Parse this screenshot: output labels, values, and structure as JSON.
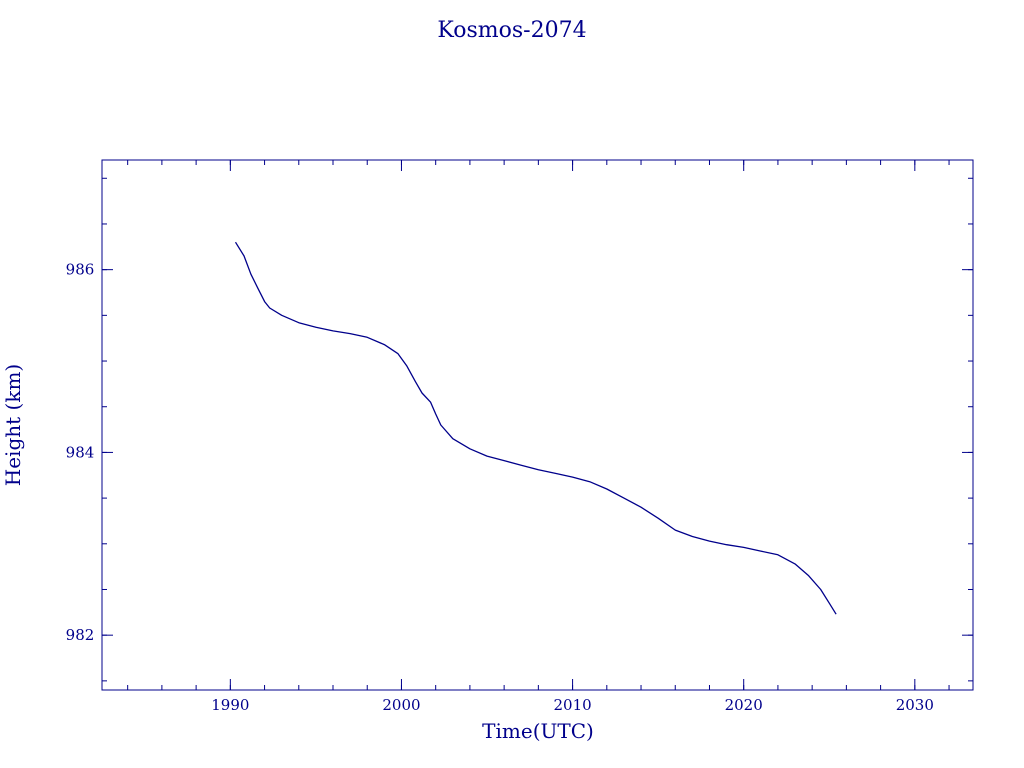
{
  "chart_data": {
    "type": "line",
    "title": "Kosmos-2074",
    "xlabel": "Time(UTC)",
    "ylabel": "Height (km)",
    "xlim": [
      1982.5,
      2033.4
    ],
    "ylim": [
      981.4,
      987.2
    ],
    "x_ticks": [
      1990,
      2000,
      2010,
      2020,
      2030
    ],
    "x_tick_labels": [
      "1990",
      "2000",
      "2010",
      "2020",
      "2030"
    ],
    "x_minor_step": 2,
    "y_ticks": [
      982,
      984,
      986
    ],
    "y_tick_labels": [
      "982",
      "984",
      "986"
    ],
    "y_minor_step": 0.5,
    "grid": false,
    "colors": {
      "line": "#00008b",
      "text": "#00008b",
      "axes": "#00008b"
    },
    "series": [
      {
        "x": [
          1990.3,
          1990.8,
          1991.2,
          1991.6,
          1992.0,
          1992.3,
          1993.0,
          1994.0,
          1995.0,
          1996.0,
          1997.0,
          1998.0,
          1999.0,
          1999.8,
          2000.3,
          2000.8,
          2001.2,
          2001.7,
          2002.0,
          2002.3,
          2003.0,
          2004.0,
          2005.0,
          2006.0,
          2007.0,
          2008.0,
          2009.0,
          2010.0,
          2011.0,
          2012.0,
          2013.0,
          2014.0,
          2015.0,
          2016.0,
          2017.0,
          2018.0,
          2019.0,
          2020.0,
          2021.0,
          2022.0,
          2023.0,
          2023.8,
          2024.5,
          2025.0,
          2025.4
        ],
        "y": [
          986.3,
          986.15,
          985.95,
          985.8,
          985.65,
          985.58,
          985.5,
          985.42,
          985.37,
          985.33,
          985.3,
          985.26,
          985.18,
          985.08,
          984.95,
          984.78,
          984.65,
          984.55,
          984.42,
          984.3,
          984.15,
          984.04,
          983.96,
          983.91,
          983.86,
          983.81,
          983.77,
          983.73,
          983.68,
          983.6,
          983.5,
          983.4,
          983.28,
          983.15,
          983.08,
          983.03,
          982.99,
          982.96,
          982.92,
          982.88,
          982.78,
          982.65,
          982.5,
          982.35,
          982.23
        ]
      }
    ]
  }
}
